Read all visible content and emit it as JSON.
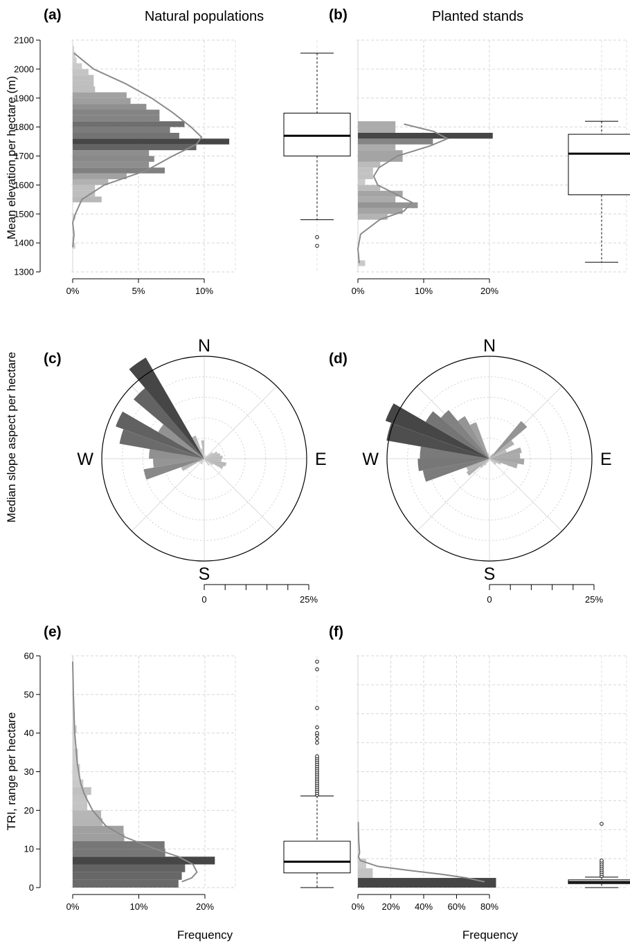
{
  "figure": {
    "col_titles": [
      "Natural populations",
      "Planted stands"
    ],
    "ylabels": {
      "elevation": "Mean elevation per hectare (m)",
      "aspect": "Median slope aspect per hectare",
      "tri": "TRI, range per hectare"
    },
    "xlabel_bottom": "Frequency",
    "compass": {
      "n": "N",
      "e": "E",
      "s": "S",
      "w": "W"
    }
  },
  "chart_data": [
    {
      "id": "a",
      "panel_label": "(a)",
      "title": "Natural populations",
      "type": "bar",
      "orientation": "horizontal",
      "ylabel": "Mean elevation per hectare (m)",
      "xlabel": "",
      "ylim": [
        1300,
        2100
      ],
      "yticks": [
        1300,
        1400,
        1500,
        1600,
        1700,
        1800,
        1900,
        2000,
        2100
      ],
      "xlim": [
        0,
        12
      ],
      "xticks": [
        0,
        5,
        10
      ],
      "xtick_labels": [
        "0%",
        "5%",
        "10%"
      ],
      "grid": true,
      "bin_width": 20,
      "bins": [
        {
          "y": 1380,
          "freq": 0.2
        },
        {
          "y": 1480,
          "freq": 0.2
        },
        {
          "y": 1540,
          "freq": 2.2
        },
        {
          "y": 1560,
          "freq": 1.7
        },
        {
          "y": 1580,
          "freq": 1.7
        },
        {
          "y": 1600,
          "freq": 2.7
        },
        {
          "y": 1620,
          "freq": 4.1
        },
        {
          "y": 1640,
          "freq": 7.0
        },
        {
          "y": 1660,
          "freq": 5.8
        },
        {
          "y": 1680,
          "freq": 6.2
        },
        {
          "y": 1700,
          "freq": 5.8
        },
        {
          "y": 1720,
          "freq": 9.4
        },
        {
          "y": 1740,
          "freq": 11.9
        },
        {
          "y": 1760,
          "freq": 8.1
        },
        {
          "y": 1780,
          "freq": 7.4
        },
        {
          "y": 1800,
          "freq": 8.5
        },
        {
          "y": 1820,
          "freq": 6.6
        },
        {
          "y": 1840,
          "freq": 6.6
        },
        {
          "y": 1860,
          "freq": 5.6
        },
        {
          "y": 1880,
          "freq": 4.4
        },
        {
          "y": 1900,
          "freq": 4.1
        },
        {
          "y": 1920,
          "freq": 1.7
        },
        {
          "y": 1940,
          "freq": 1.6
        },
        {
          "y": 1960,
          "freq": 1.6
        },
        {
          "y": 1980,
          "freq": 1.2
        },
        {
          "y": 2000,
          "freq": 0.7
        },
        {
          "y": 2020,
          "freq": 0.3
        },
        {
          "y": 2040,
          "freq": 0.2
        },
        {
          "y": 2060,
          "freq": 0.1
        }
      ],
      "density": [
        {
          "y": 2055,
          "freq": 0.1
        },
        {
          "y": 2000,
          "freq": 1.6
        },
        {
          "y": 1950,
          "freq": 4.0
        },
        {
          "y": 1900,
          "freq": 6.0
        },
        {
          "y": 1850,
          "freq": 7.6
        },
        {
          "y": 1800,
          "freq": 9.0
        },
        {
          "y": 1765,
          "freq": 9.8
        },
        {
          "y": 1740,
          "freq": 9.4
        },
        {
          "y": 1700,
          "freq": 7.6
        },
        {
          "y": 1650,
          "freq": 5.6
        },
        {
          "y": 1600,
          "freq": 2.4
        },
        {
          "y": 1550,
          "freq": 0.7
        },
        {
          "y": 1500,
          "freq": 0.2
        },
        {
          "y": 1470,
          "freq": 0.0
        },
        {
          "y": 1430,
          "freq": 0.1
        },
        {
          "y": 1385,
          "freq": 0.0
        }
      ],
      "boxplot": {
        "min": 1480,
        "q1": 1700,
        "median": 1770,
        "q3": 1848,
        "max": 2055,
        "outliers": [
          1420,
          1390
        ]
      }
    },
    {
      "id": "b",
      "panel_label": "(b)",
      "title": "Planted stands",
      "type": "bar",
      "orientation": "horizontal",
      "ylim": [
        1300,
        2100
      ],
      "xlim": [
        0,
        22
      ],
      "xticks": [
        0,
        10,
        20
      ],
      "xtick_labels": [
        "0%",
        "10%",
        "20%"
      ],
      "grid": true,
      "bin_width": 20,
      "bins": [
        {
          "y": 1320,
          "freq": 1.1
        },
        {
          "y": 1480,
          "freq": 4.5
        },
        {
          "y": 1500,
          "freq": 6.8
        },
        {
          "y": 1520,
          "freq": 9.1
        },
        {
          "y": 1540,
          "freq": 5.7
        },
        {
          "y": 1560,
          "freq": 6.8
        },
        {
          "y": 1580,
          "freq": 3.4
        },
        {
          "y": 1600,
          "freq": 1.1
        },
        {
          "y": 1620,
          "freq": 2.3
        },
        {
          "y": 1640,
          "freq": 2.3
        },
        {
          "y": 1660,
          "freq": 3.4
        },
        {
          "y": 1680,
          "freq": 6.8
        },
        {
          "y": 1700,
          "freq": 6.8
        },
        {
          "y": 1720,
          "freq": 5.7
        },
        {
          "y": 1740,
          "freq": 11.4
        },
        {
          "y": 1760,
          "freq": 20.5
        },
        {
          "y": 1780,
          "freq": 5.7
        },
        {
          "y": 1800,
          "freq": 5.7
        }
      ],
      "density": [
        {
          "y": 1330,
          "freq": 0.2
        },
        {
          "y": 1380,
          "freq": 0.0
        },
        {
          "y": 1430,
          "freq": 0.4
        },
        {
          "y": 1480,
          "freq": 3.3
        },
        {
          "y": 1510,
          "freq": 7.0
        },
        {
          "y": 1540,
          "freq": 8.2
        },
        {
          "y": 1570,
          "freq": 5.6
        },
        {
          "y": 1600,
          "freq": 3.0
        },
        {
          "y": 1630,
          "freq": 2.4
        },
        {
          "y": 1660,
          "freq": 3.2
        },
        {
          "y": 1700,
          "freq": 6.0
        },
        {
          "y": 1735,
          "freq": 11.0
        },
        {
          "y": 1760,
          "freq": 13.6
        },
        {
          "y": 1785,
          "freq": 11.5
        },
        {
          "y": 1810,
          "freq": 7.0
        }
      ],
      "boxplot": {
        "min": 1333,
        "q1": 1566,
        "median": 1708,
        "q3": 1775,
        "max": 1820,
        "outliers": []
      }
    },
    {
      "id": "c",
      "panel_label": "(c)",
      "type": "rose",
      "scale_max_percent": 25,
      "scale_labels": [
        "0",
        "25%"
      ],
      "petals": [
        {
          "deg": 5,
          "pct": 0.8
        },
        {
          "deg": 15,
          "pct": 1.0
        },
        {
          "deg": 25,
          "pct": 0.8
        },
        {
          "deg": 35,
          "pct": 0.5
        },
        {
          "deg": 45,
          "pct": 1.0
        },
        {
          "deg": 55,
          "pct": 2.5
        },
        {
          "deg": 65,
          "pct": 3.5
        },
        {
          "deg": 75,
          "pct": 4.0
        },
        {
          "deg": 85,
          "pct": 4.5
        },
        {
          "deg": 95,
          "pct": 4.2
        },
        {
          "deg": 105,
          "pct": 5.5
        },
        {
          "deg": 115,
          "pct": 5.0
        },
        {
          "deg": 125,
          "pct": 2.5
        },
        {
          "deg": 135,
          "pct": 1.0
        },
        {
          "deg": 145,
          "pct": 2.0
        },
        {
          "deg": 155,
          "pct": 1.0
        },
        {
          "deg": 165,
          "pct": 0.5
        },
        {
          "deg": 175,
          "pct": 0.3
        },
        {
          "deg": 185,
          "pct": 0.3
        },
        {
          "deg": 195,
          "pct": 0.4
        },
        {
          "deg": 205,
          "pct": 1.5
        },
        {
          "deg": 215,
          "pct": 1.5
        },
        {
          "deg": 225,
          "pct": 1.0
        },
        {
          "deg": 235,
          "pct": 1.5
        },
        {
          "deg": 245,
          "pct": 6.0
        },
        {
          "deg": 255,
          "pct": 15.0
        },
        {
          "deg": 265,
          "pct": 12.5
        },
        {
          "deg": 275,
          "pct": 13.5
        },
        {
          "deg": 285,
          "pct": 21.0
        },
        {
          "deg": 295,
          "pct": 23.0
        },
        {
          "deg": 305,
          "pct": 13.0
        },
        {
          "deg": 315,
          "pct": 22.5
        },
        {
          "deg": 325,
          "pct": 28.5
        },
        {
          "deg": 335,
          "pct": 6.0
        },
        {
          "deg": 345,
          "pct": 2.5
        },
        {
          "deg": 355,
          "pct": 4.5
        }
      ]
    },
    {
      "id": "d",
      "panel_label": "(d)",
      "type": "rose",
      "scale_max_percent": 25,
      "scale_labels": [
        "0",
        "25%"
      ],
      "petals": [
        {
          "deg": 5,
          "pct": 0.5
        },
        {
          "deg": 15,
          "pct": 0.8
        },
        {
          "deg": 25,
          "pct": 1.0
        },
        {
          "deg": 35,
          "pct": 1.5
        },
        {
          "deg": 45,
          "pct": 12.0
        },
        {
          "deg": 55,
          "pct": 7.0
        },
        {
          "deg": 65,
          "pct": 4.5
        },
        {
          "deg": 75,
          "pct": 8.0
        },
        {
          "deg": 85,
          "pct": 7.5
        },
        {
          "deg": 95,
          "pct": 8.5
        },
        {
          "deg": 105,
          "pct": 7.0
        },
        {
          "deg": 115,
          "pct": 3.0
        },
        {
          "deg": 125,
          "pct": 2.0
        },
        {
          "deg": 135,
          "pct": 2.0
        },
        {
          "deg": 145,
          "pct": 1.0
        },
        {
          "deg": 155,
          "pct": 0.5
        },
        {
          "deg": 165,
          "pct": 0.3
        },
        {
          "deg": 175,
          "pct": 0.3
        },
        {
          "deg": 185,
          "pct": 0.3
        },
        {
          "deg": 195,
          "pct": 0.5
        },
        {
          "deg": 205,
          "pct": 1.0
        },
        {
          "deg": 215,
          "pct": 2.0
        },
        {
          "deg": 225,
          "pct": 3.0
        },
        {
          "deg": 235,
          "pct": 6.5
        },
        {
          "deg": 245,
          "pct": 6.0
        },
        {
          "deg": 255,
          "pct": 16.5
        },
        {
          "deg": 265,
          "pct": 17.5
        },
        {
          "deg": 275,
          "pct": 17.0
        },
        {
          "deg": 285,
          "pct": 25.5
        },
        {
          "deg": 295,
          "pct": 27.0
        },
        {
          "deg": 305,
          "pct": 18.0
        },
        {
          "deg": 315,
          "pct": 15.5
        },
        {
          "deg": 325,
          "pct": 12.0
        },
        {
          "deg": 335,
          "pct": 9.5
        },
        {
          "deg": 345,
          "pct": 1.5
        },
        {
          "deg": 355,
          "pct": 0.5
        }
      ]
    },
    {
      "id": "e",
      "panel_label": "(e)",
      "type": "bar",
      "orientation": "horizontal",
      "ylabel": "TRI, range per hectare",
      "xlabel": "Frequency",
      "ylim": [
        0,
        60
      ],
      "yticks": [
        0,
        10,
        20,
        30,
        40,
        50,
        60
      ],
      "xlim": [
        0,
        23
      ],
      "xticks": [
        0,
        10,
        20
      ],
      "xtick_labels": [
        "0%",
        "10%",
        "20%"
      ],
      "grid": true,
      "bin_width": 2,
      "bins": [
        {
          "y": 0,
          "freq": 16.0
        },
        {
          "y": 2,
          "freq": 16.5
        },
        {
          "y": 4,
          "freq": 17.0
        },
        {
          "y": 6,
          "freq": 21.5
        },
        {
          "y": 8,
          "freq": 14.0
        },
        {
          "y": 10,
          "freq": 13.9
        },
        {
          "y": 12,
          "freq": 7.8
        },
        {
          "y": 14,
          "freq": 7.7
        },
        {
          "y": 16,
          "freq": 4.5
        },
        {
          "y": 18,
          "freq": 4.3
        },
        {
          "y": 20,
          "freq": 2.2
        },
        {
          "y": 22,
          "freq": 2.2
        },
        {
          "y": 24,
          "freq": 2.8
        },
        {
          "y": 26,
          "freq": 1.6
        },
        {
          "y": 28,
          "freq": 1.1
        },
        {
          "y": 30,
          "freq": 1.1
        },
        {
          "y": 32,
          "freq": 0.8
        },
        {
          "y": 34,
          "freq": 0.8
        },
        {
          "y": 36,
          "freq": 0.3
        },
        {
          "y": 38,
          "freq": 0.3
        },
        {
          "y": 40,
          "freq": 0.6
        },
        {
          "y": 42,
          "freq": 0.2
        },
        {
          "y": 44,
          "freq": 0.2
        },
        {
          "y": 46,
          "freq": 0.2
        },
        {
          "y": 48,
          "freq": 0.2
        },
        {
          "y": 50,
          "freq": 0.1
        },
        {
          "y": 52,
          "freq": 0.1
        },
        {
          "y": 54,
          "freq": 0.1
        },
        {
          "y": 56,
          "freq": 0.1
        },
        {
          "y": 58,
          "freq": 0.1
        }
      ],
      "density": [
        {
          "y": 58.5,
          "freq": 0.0
        },
        {
          "y": 50,
          "freq": 0.1
        },
        {
          "y": 40,
          "freq": 0.3
        },
        {
          "y": 32,
          "freq": 0.7
        },
        {
          "y": 27,
          "freq": 1.2
        },
        {
          "y": 24,
          "freq": 1.8
        },
        {
          "y": 20,
          "freq": 3.0
        },
        {
          "y": 16,
          "freq": 5.0
        },
        {
          "y": 13,
          "freq": 8.0
        },
        {
          "y": 10,
          "freq": 12.5
        },
        {
          "y": 8,
          "freq": 16.0
        },
        {
          "y": 6,
          "freq": 18.2
        },
        {
          "y": 4,
          "freq": 18.8
        },
        {
          "y": 2.5,
          "freq": 18.0
        },
        {
          "y": 1.5,
          "freq": 16.5
        }
      ],
      "boxplot": {
        "min": 0,
        "q1": 3.8,
        "median": 6.7,
        "q3": 12,
        "max": 23.7,
        "outliers": [
          24,
          24.5,
          25,
          25.5,
          26,
          26.5,
          27,
          27.5,
          28,
          28.5,
          29,
          29.5,
          30,
          30.5,
          31,
          31.5,
          32,
          32.5,
          33,
          33.5,
          34,
          37.5,
          38.5,
          39.5,
          40,
          41.5,
          46.5,
          56.5,
          58.5
        ]
      }
    },
    {
      "id": "f",
      "panel_label": "(f)",
      "type": "bar",
      "orientation": "horizontal",
      "xlabel": "Frequency",
      "ylim": [
        0,
        60
      ],
      "xlim": [
        0,
        88
      ],
      "xticks": [
        0,
        20,
        40,
        60,
        80
      ],
      "xtick_labels": [
        "0%",
        "20%",
        "40%",
        "60%",
        "80%"
      ],
      "grid": true,
      "bin_width": 2.5,
      "bins": [
        {
          "y": 0,
          "freq": 84.0
        },
        {
          "y": 2.5,
          "freq": 9.0
        },
        {
          "y": 5,
          "freq": 5.0
        },
        {
          "y": 7.5,
          "freq": 0.4
        },
        {
          "y": 10,
          "freq": 0.3
        },
        {
          "y": 15,
          "freq": 0.3
        }
      ],
      "density": [
        {
          "y": 17,
          "freq": 0.2
        },
        {
          "y": 12,
          "freq": 0.5
        },
        {
          "y": 9,
          "freq": 1.0
        },
        {
          "y": 8,
          "freq": 0.3
        },
        {
          "y": 7,
          "freq": 1.5
        },
        {
          "y": 5.5,
          "freq": 12.0
        },
        {
          "y": 4.5,
          "freq": 30.0
        },
        {
          "y": 3.5,
          "freq": 50.0
        },
        {
          "y": 2.5,
          "freq": 66.0
        },
        {
          "y": 1.5,
          "freq": 77.0
        }
      ],
      "boxplot": {
        "min": 0,
        "q1": 1.0,
        "median": 1.4,
        "q3": 2.0,
        "max": 2.7,
        "outliers": [
          3.0,
          3.5,
          4.0,
          4.5,
          5.0,
          5.5,
          6.0,
          6.5,
          7.0,
          16.5
        ]
      }
    }
  ]
}
